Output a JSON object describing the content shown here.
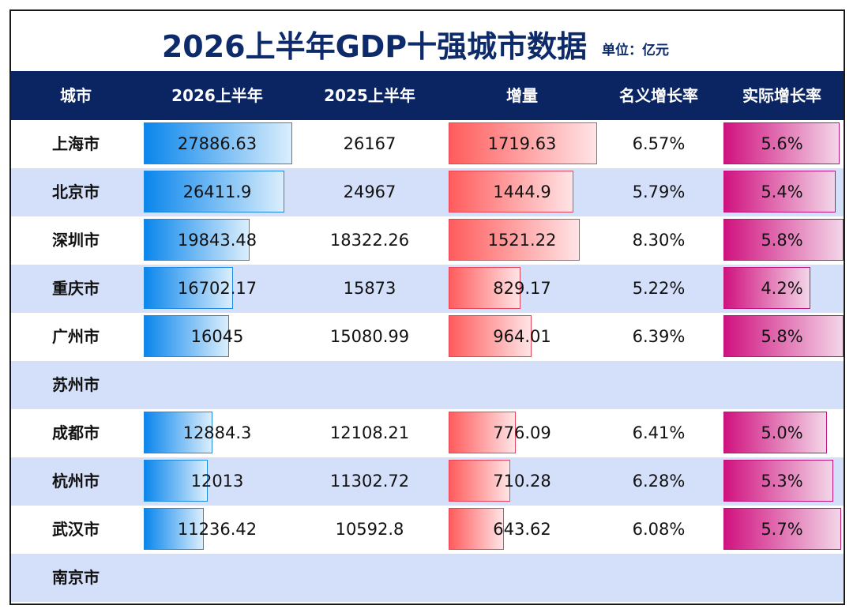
{
  "title": "2026上半年GDP十强城市数据",
  "unit": "单位：亿元",
  "chart_data": {
    "type": "table",
    "columns": [
      "城市",
      "2026上半年",
      "2025上半年",
      "增量",
      "名义增长率",
      "实际增长率"
    ],
    "rows": [
      {
        "city": "上海市",
        "gdp2026": "27886.63",
        "gdp2025": "26167",
        "increase": "1719.63",
        "nominal": "6.57%",
        "real": "5.6%"
      },
      {
        "city": "北京市",
        "gdp2026": "26411.9",
        "gdp2025": "24967",
        "increase": "1444.9",
        "nominal": "5.79%",
        "real": "5.4%"
      },
      {
        "city": "深圳市",
        "gdp2026": "19843.48",
        "gdp2025": "18322.26",
        "increase": "1521.22",
        "nominal": "8.30%",
        "real": "5.8%"
      },
      {
        "city": "重庆市",
        "gdp2026": "16702.17",
        "gdp2025": "15873",
        "increase": "829.17",
        "nominal": "5.22%",
        "real": "4.2%"
      },
      {
        "city": "广州市",
        "gdp2026": "16045",
        "gdp2025": "15080.99",
        "increase": "964.01",
        "nominal": "6.39%",
        "real": "5.8%"
      },
      {
        "city": "苏州市",
        "gdp2026": "",
        "gdp2025": "",
        "increase": "",
        "nominal": "",
        "real": ""
      },
      {
        "city": "成都市",
        "gdp2026": "12884.3",
        "gdp2025": "12108.21",
        "increase": "776.09",
        "nominal": "6.41%",
        "real": "5.0%"
      },
      {
        "city": "杭州市",
        "gdp2026": "12013",
        "gdp2025": "11302.72",
        "increase": "710.28",
        "nominal": "6.28%",
        "real": "5.3%"
      },
      {
        "city": "武汉市",
        "gdp2026": "11236.42",
        "gdp2025": "10592.8",
        "increase": "643.62",
        "nominal": "6.08%",
        "real": "5.7%"
      },
      {
        "city": "南京市",
        "gdp2026": "",
        "gdp2025": "",
        "increase": "",
        "nominal": "",
        "real": ""
      }
    ],
    "data_bars": {
      "gdp2026": {
        "color": "#1e88e5",
        "min": 0,
        "max": 27886.63
      },
      "increase": {
        "color": "#ff5c5c",
        "min": 0,
        "max": 1719.63
      },
      "real": {
        "color": "#d0127f",
        "min": 0,
        "max": 5.8
      }
    }
  },
  "colors": {
    "header_bg": "#0b2462",
    "title": "#0d2a6b",
    "row_alt_bg": "#d4dffa"
  }
}
